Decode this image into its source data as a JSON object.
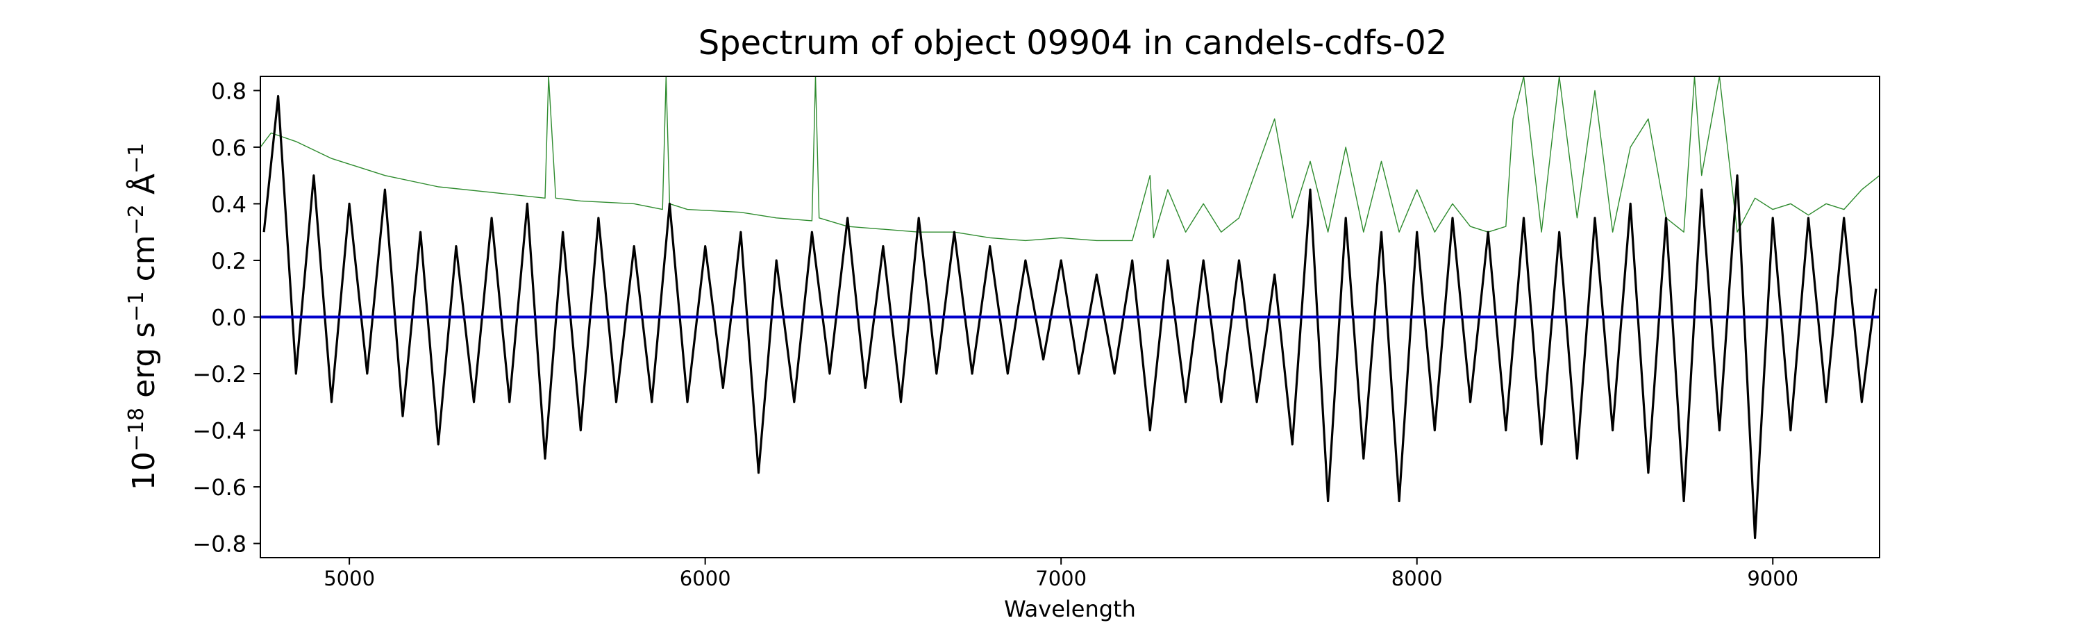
{
  "chart_data": {
    "type": "line",
    "title": "Spectrum of object 09904 in candels-cdfs-02",
    "xlabel": "Wavelength",
    "ylabel_parts": [
      "10",
      "−18",
      " erg s",
      "−1",
      " cm",
      "−2",
      " Å",
      "−1"
    ],
    "xlim": [
      4750,
      9300
    ],
    "ylim": [
      -0.85,
      0.85
    ],
    "x_ticks": [
      5000,
      6000,
      7000,
      8000,
      9000
    ],
    "x_tick_labels": [
      "5000",
      "6000",
      "7000",
      "8000",
      "9000"
    ],
    "y_ticks": [
      -0.8,
      -0.6,
      -0.4,
      -0.2,
      0.0,
      0.2,
      0.4,
      0.6,
      0.8
    ],
    "y_tick_labels": [
      "−0.8",
      "−0.6",
      "−0.4",
      "−0.2",
      "0.0",
      "0.2",
      "0.4",
      "0.6",
      "0.8"
    ],
    "grid": false,
    "series": [
      {
        "role": "flux",
        "color": "#000000",
        "x": [
          4760,
          4800,
          4850,
          4900,
          4950,
          5000,
          5050,
          5100,
          5150,
          5200,
          5250,
          5300,
          5350,
          5400,
          5450,
          5500,
          5550,
          5600,
          5650,
          5700,
          5750,
          5800,
          5850,
          5900,
          5950,
          6000,
          6050,
          6100,
          6150,
          6200,
          6250,
          6300,
          6350,
          6400,
          6450,
          6500,
          6550,
          6600,
          6650,
          6700,
          6750,
          6800,
          6850,
          6900,
          6950,
          7000,
          7050,
          7100,
          7150,
          7200,
          7250,
          7300,
          7350,
          7400,
          7450,
          7500,
          7550,
          7600,
          7650,
          7700,
          7750,
          7800,
          7850,
          7900,
          7950,
          8000,
          8050,
          8100,
          8150,
          8200,
          8250,
          8300,
          8350,
          8400,
          8450,
          8500,
          8550,
          8600,
          8650,
          8700,
          8750,
          8800,
          8850,
          8900,
          8950,
          9000,
          9050,
          9100,
          9150,
          9200,
          9250,
          9290
        ],
        "y": [
          0.3,
          0.78,
          -0.2,
          0.5,
          -0.3,
          0.4,
          -0.2,
          0.45,
          -0.35,
          0.3,
          -0.45,
          0.25,
          -0.3,
          0.35,
          -0.3,
          0.4,
          -0.5,
          0.3,
          -0.4,
          0.35,
          -0.3,
          0.25,
          -0.3,
          0.4,
          -0.3,
          0.25,
          -0.25,
          0.3,
          -0.55,
          0.2,
          -0.3,
          0.3,
          -0.2,
          0.35,
          -0.25,
          0.25,
          -0.3,
          0.35,
          -0.2,
          0.3,
          -0.2,
          0.25,
          -0.2,
          0.2,
          -0.15,
          0.2,
          -0.2,
          0.15,
          -0.2,
          0.2,
          -0.4,
          0.2,
          -0.3,
          0.2,
          -0.3,
          0.2,
          -0.3,
          0.15,
          -0.45,
          0.45,
          -0.65,
          0.35,
          -0.5,
          0.3,
          -0.65,
          0.3,
          -0.4,
          0.35,
          -0.3,
          0.3,
          -0.4,
          0.35,
          -0.45,
          0.3,
          -0.5,
          0.35,
          -0.4,
          0.4,
          -0.55,
          0.35,
          -0.65,
          0.45,
          -0.4,
          0.5,
          -0.78,
          0.35,
          -0.4,
          0.35,
          -0.3,
          0.35,
          -0.3,
          0.1
        ]
      },
      {
        "role": "model",
        "color": "#2e8b2e",
        "x": [
          4750,
          4780,
          4850,
          4950,
          5100,
          5250,
          5400,
          5550,
          5560,
          5580,
          5650,
          5800,
          5880,
          5890,
          5900,
          5950,
          6100,
          6200,
          6300,
          6310,
          6320,
          6400,
          6500,
          6600,
          6700,
          6800,
          6900,
          7000,
          7100,
          7200,
          7250,
          7260,
          7300,
          7350,
          7400,
          7450,
          7500,
          7600,
          7650,
          7700,
          7750,
          7800,
          7850,
          7900,
          7950,
          8000,
          8050,
          8100,
          8150,
          8200,
          8250,
          8270,
          8300,
          8350,
          8400,
          8450,
          8500,
          8550,
          8600,
          8650,
          8700,
          8750,
          8780,
          8800,
          8850,
          8900,
          8950,
          9000,
          9050,
          9100,
          9150,
          9200,
          9250,
          9300
        ],
        "y": [
          0.6,
          0.65,
          0.62,
          0.56,
          0.5,
          0.46,
          0.44,
          0.42,
          0.85,
          0.42,
          0.41,
          0.4,
          0.38,
          0.85,
          0.4,
          0.38,
          0.37,
          0.35,
          0.34,
          0.85,
          0.35,
          0.32,
          0.31,
          0.3,
          0.3,
          0.28,
          0.27,
          0.28,
          0.27,
          0.27,
          0.5,
          0.28,
          0.45,
          0.3,
          0.4,
          0.3,
          0.35,
          0.7,
          0.35,
          0.55,
          0.3,
          0.6,
          0.3,
          0.55,
          0.3,
          0.45,
          0.3,
          0.4,
          0.32,
          0.3,
          0.32,
          0.7,
          0.85,
          0.3,
          0.85,
          0.35,
          0.8,
          0.3,
          0.6,
          0.7,
          0.35,
          0.3,
          0.85,
          0.5,
          0.85,
          0.3,
          0.42,
          0.38,
          0.4,
          0.36,
          0.4,
          0.38,
          0.45,
          0.5
        ]
      },
      {
        "role": "zero",
        "color": "#0000cc",
        "x": [
          4750,
          9300
        ],
        "y": [
          0.0,
          0.0
        ]
      }
    ]
  }
}
